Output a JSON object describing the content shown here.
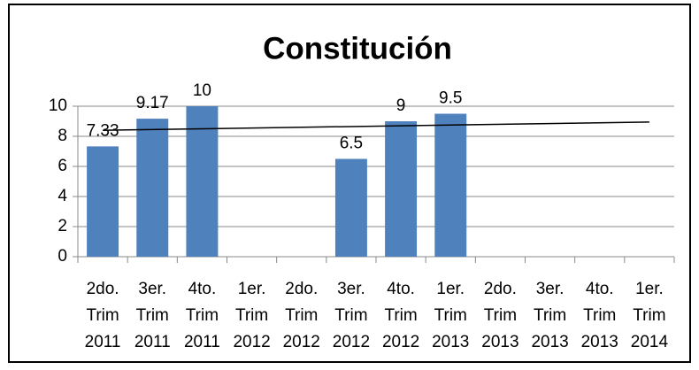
{
  "chart_data": {
    "type": "bar",
    "title": "Constitución",
    "categories": [
      [
        "2do.",
        "Trim",
        "2011"
      ],
      [
        "3er.",
        "Trim",
        "2011"
      ],
      [
        "4to.",
        "Trim",
        "2011"
      ],
      [
        "1er.",
        "Trim",
        "2012"
      ],
      [
        "2do.",
        "Trim",
        "2012"
      ],
      [
        "3er.",
        "Trim",
        "2012"
      ],
      [
        "4to.",
        "Trim",
        "2012"
      ],
      [
        "1er.",
        "Trim",
        "2013"
      ],
      [
        "2do.",
        "Trim",
        "2013"
      ],
      [
        "3er.",
        "Trim",
        "2013"
      ],
      [
        "4to.",
        "Trim",
        "2013"
      ],
      [
        "1er.",
        "Trim",
        "2014"
      ]
    ],
    "values": [
      7.33,
      9.17,
      10,
      null,
      null,
      6.5,
      9,
      9.5,
      null,
      null,
      null,
      null
    ],
    "color": "#4f81bd",
    "trendline": [
      8.4,
      8.95
    ],
    "ylim": [
      0,
      10
    ],
    "yticks": [
      0,
      2,
      4,
      6,
      8,
      10
    ],
    "grid": true
  }
}
